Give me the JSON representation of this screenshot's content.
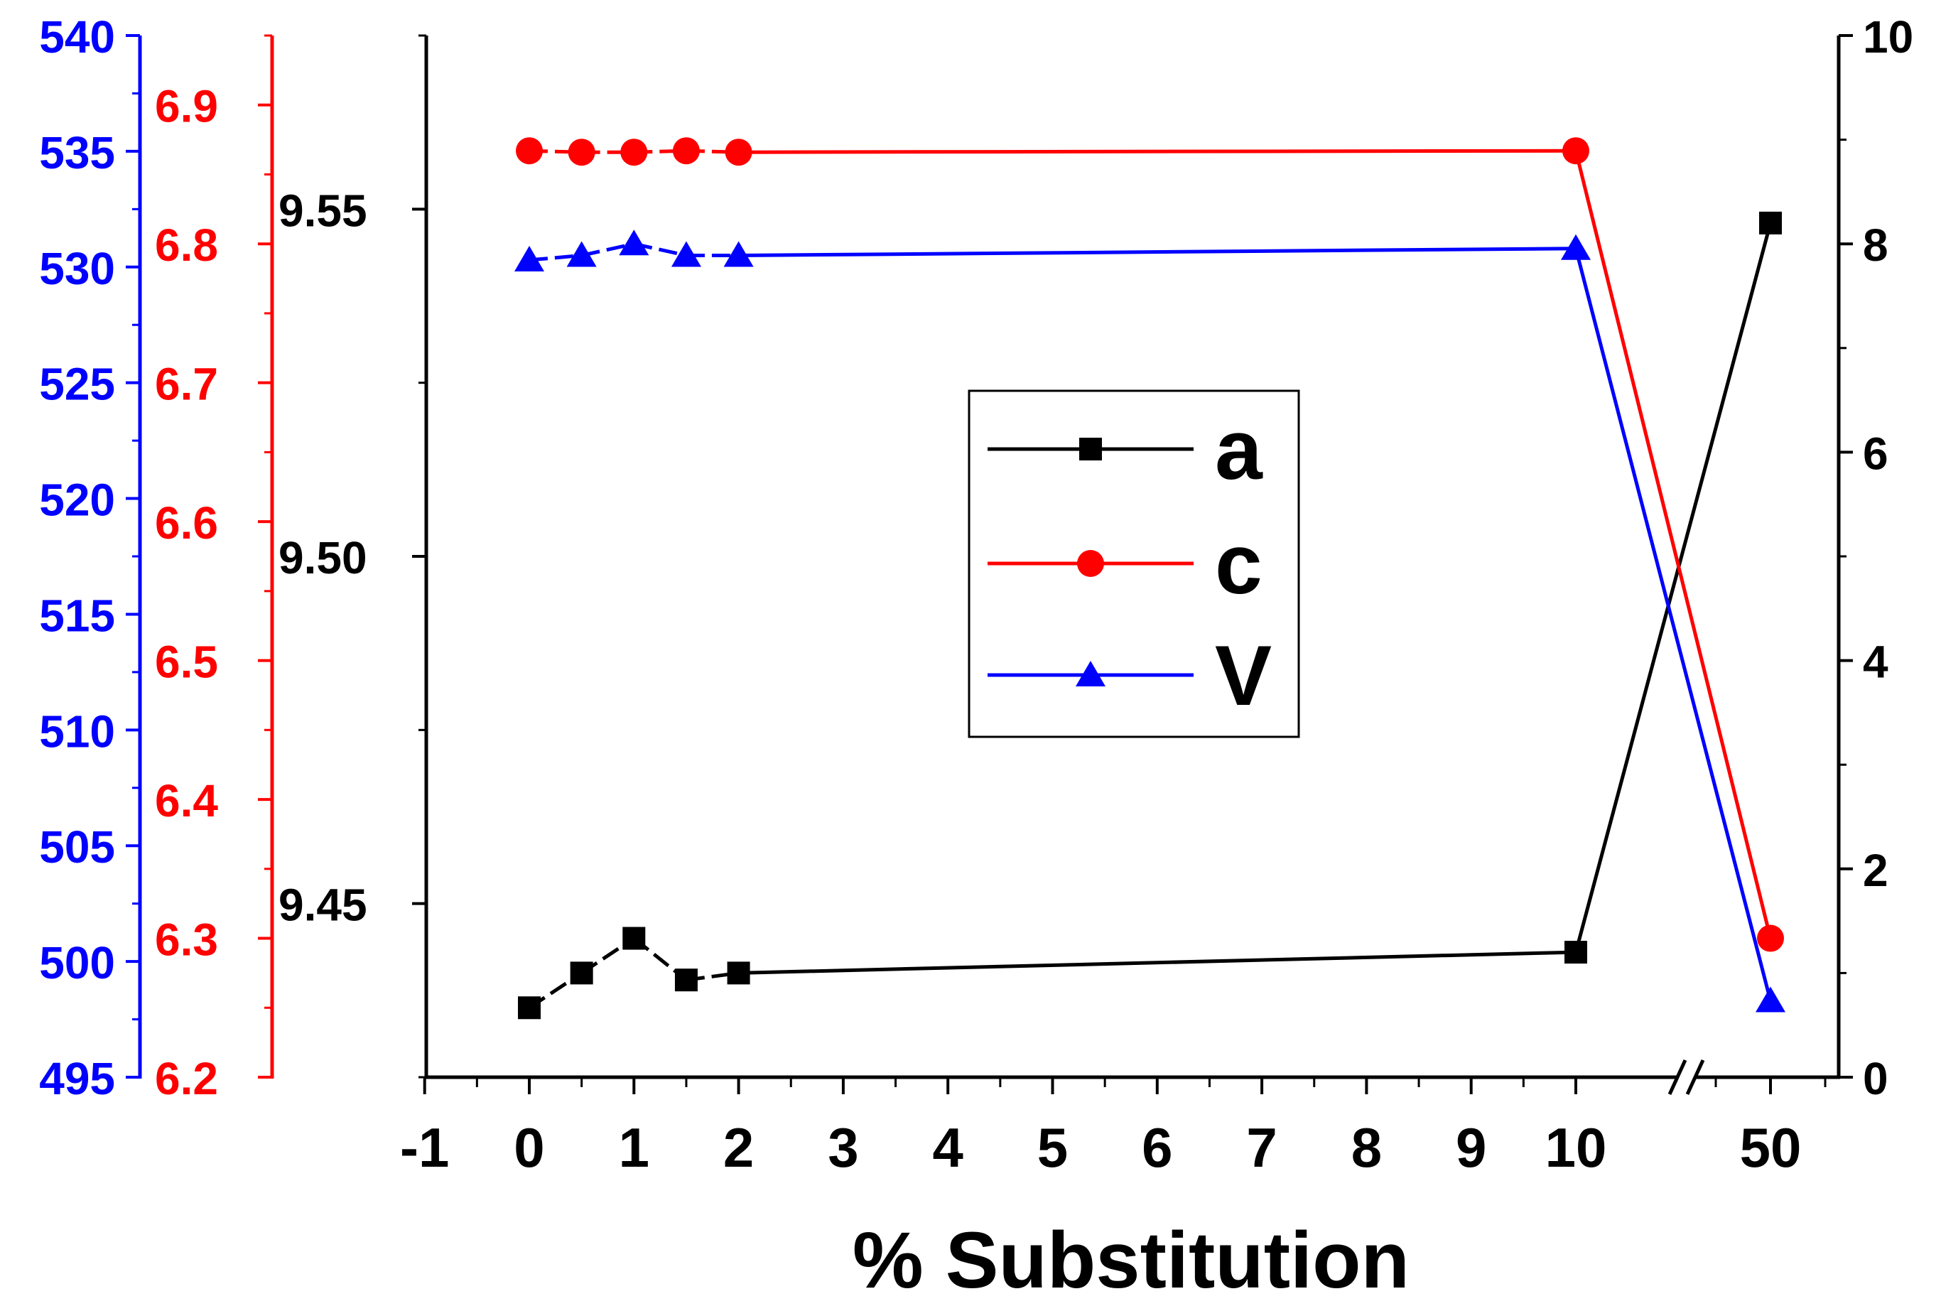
{
  "chart_data": {
    "type": "line",
    "title": "",
    "xlabel": "% Substitution",
    "x_tick_labels": [
      "-1",
      "0",
      "1",
      "2",
      "3",
      "4",
      "5",
      "6",
      "7",
      "8",
      "9",
      "10",
      "50"
    ],
    "x_break": "between 10 and 50",
    "series": [
      {
        "name": "a",
        "axis": "left-inner",
        "color": "#000000",
        "marker": "square",
        "x": [
          0,
          0.5,
          1,
          1.5,
          2,
          10,
          50
        ],
        "values": [
          9.435,
          9.44,
          9.445,
          9.439,
          9.44,
          9.443,
          9.548
        ]
      },
      {
        "name": "c",
        "axis": "left-middle",
        "color": "#ff0000",
        "marker": "circle",
        "x": [
          0,
          0.5,
          1,
          1.5,
          2,
          10,
          50
        ],
        "values": [
          6.867,
          6.866,
          6.866,
          6.867,
          6.866,
          6.867,
          6.3
        ]
      },
      {
        "name": "V",
        "axis": "left-outer",
        "color": "#0000ff",
        "marker": "triangle",
        "x": [
          0,
          0.5,
          1,
          1.5,
          2,
          10,
          50
        ],
        "values": [
          530.3,
          530.5,
          531.0,
          530.5,
          530.5,
          530.8,
          498.3
        ]
      }
    ],
    "axes": {
      "left_inner": {
        "color": "#000000",
        "ylim": [
          9.425,
          9.575
        ],
        "tick_labels": [
          "9.45",
          "9.50",
          "9.55"
        ]
      },
      "left_middle": {
        "color": "#ff0000",
        "ylim": [
          6.2,
          6.95
        ],
        "tick_labels": [
          "6.2",
          "6.3",
          "6.4",
          "6.5",
          "6.6",
          "6.7",
          "6.8",
          "6.9"
        ]
      },
      "left_outer": {
        "color": "#0000ff",
        "ylim": [
          495,
          540
        ],
        "tick_labels": [
          "495",
          "500",
          "505",
          "510",
          "515",
          "520",
          "525",
          "530",
          "535",
          "540"
        ]
      },
      "right": {
        "color": "#000000",
        "ylim": [
          0,
          10
        ],
        "tick_labels": [
          "0",
          "2",
          "4",
          "6",
          "8",
          "10"
        ]
      }
    },
    "legend": {
      "placement": "center",
      "entries": [
        "a",
        "c",
        "V"
      ]
    }
  }
}
